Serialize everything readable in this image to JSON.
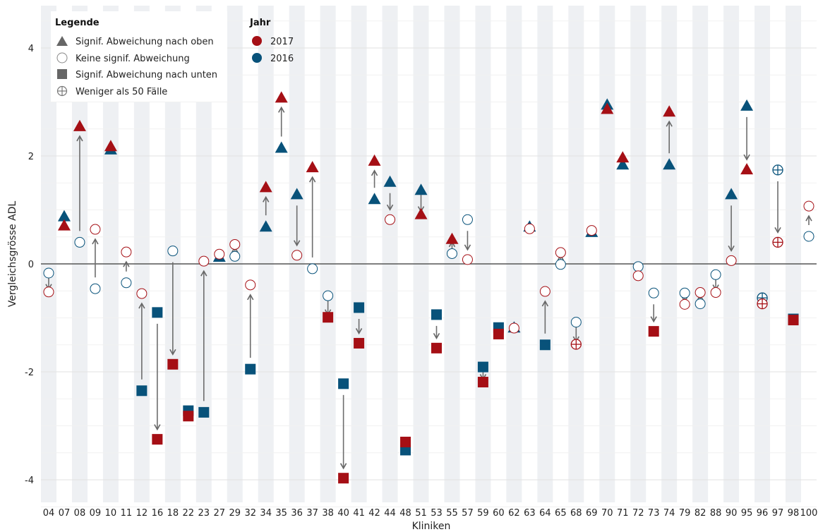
{
  "chart_data": {
    "type": "scatter",
    "xlabel": "Kliniken",
    "ylabel": "Vergleichsgrösse ADL",
    "ylim": [
      -4.6,
      4.6
    ],
    "yticks": [
      -4,
      -2,
      0,
      2,
      4
    ],
    "grid": true,
    "legend_position": "top-left",
    "legend": {
      "title": "Legende",
      "items": [
        {
          "label": "Signif. Abweichung nach oben",
          "symbol": "triangle"
        },
        {
          "label": "Keine signif. Abweichung",
          "symbol": "circle"
        },
        {
          "label": "Signif. Abweichung nach unten",
          "symbol": "square"
        },
        {
          "label": "Weniger als 50 Fälle",
          "symbol": "crossed-circle"
        }
      ]
    },
    "year_legend": {
      "title": "Jahr",
      "items": [
        {
          "label": "2017",
          "color": "#a50f15"
        },
        {
          "label": "2016",
          "color": "#08527a"
        }
      ]
    },
    "categories": [
      "04",
      "07",
      "08",
      "09",
      "10",
      "11",
      "12",
      "16",
      "18",
      "22",
      "23",
      "27",
      "29",
      "32",
      "34",
      "35",
      "36",
      "37",
      "38",
      "40",
      "41",
      "42",
      "44",
      "48",
      "51",
      "53",
      "55",
      "57",
      "59",
      "60",
      "62",
      "63",
      "64",
      "65",
      "68",
      "69",
      "70",
      "71",
      "72",
      "73",
      "74",
      "79",
      "82",
      "88",
      "90",
      "95",
      "96",
      "97",
      "98",
      "100"
    ],
    "series": [
      {
        "name": "2016",
        "color": "#08527a",
        "values": [
          -0.17,
          0.88,
          0.4,
          -0.46,
          2.12,
          -0.35,
          -2.35,
          -0.9,
          0.24,
          -2.72,
          -2.75,
          0.13,
          0.14,
          -1.95,
          0.69,
          2.15,
          1.29,
          -0.09,
          -0.59,
          -2.22,
          -0.81,
          1.2,
          1.52,
          -3.45,
          1.37,
          -0.94,
          0.19,
          0.82,
          -1.91,
          -1.18,
          -1.18,
          0.69,
          -1.5,
          -0.01,
          -1.08,
          0.59,
          2.95,
          1.84,
          -0.05,
          -0.54,
          1.84,
          -0.54,
          -0.74,
          -0.2,
          1.29,
          2.93,
          -0.63,
          1.74,
          -1.02,
          0.51
        ],
        "markers": [
          "circle",
          "triangle",
          "circle",
          "circle",
          "triangle",
          "circle",
          "square",
          "square",
          "circle",
          "square",
          "square",
          "triangle",
          "circle",
          "square",
          "triangle",
          "triangle",
          "triangle",
          "circle",
          "circle",
          "square",
          "square",
          "triangle",
          "triangle",
          "square",
          "triangle",
          "square",
          "circle",
          "circle",
          "square",
          "square",
          "triangle",
          "triangle",
          "square",
          "circle",
          "circle",
          "triangle",
          "triangle",
          "triangle",
          "circle",
          "circle",
          "triangle",
          "circle",
          "circle",
          "circle",
          "triangle",
          "triangle",
          "crossed-circle",
          "crossed-circle",
          "square",
          "circle"
        ]
      },
      {
        "name": "2017",
        "color": "#a50f15",
        "values": [
          -0.52,
          0.71,
          2.55,
          0.64,
          2.18,
          0.22,
          -0.55,
          -3.25,
          -1.86,
          -2.82,
          0.05,
          0.18,
          0.36,
          -0.39,
          1.42,
          3.08,
          0.16,
          1.79,
          -0.99,
          -3.97,
          -1.47,
          1.91,
          0.82,
          -3.3,
          0.92,
          -1.56,
          0.46,
          0.08,
          -2.19,
          -1.3,
          -1.19,
          0.65,
          -0.51,
          0.21,
          -1.49,
          0.62,
          2.87,
          1.97,
          -0.22,
          -1.25,
          2.82,
          -0.75,
          -0.53,
          -0.53,
          0.06,
          1.75,
          -0.74,
          0.4,
          -1.04,
          1.07
        ],
        "markers": [
          "circle",
          "triangle",
          "triangle",
          "circle",
          "triangle",
          "circle",
          "circle",
          "square",
          "square",
          "square",
          "circle",
          "circle",
          "circle",
          "circle",
          "triangle",
          "triangle",
          "circle",
          "triangle",
          "square",
          "square",
          "square",
          "triangle",
          "circle",
          "square",
          "triangle",
          "square",
          "triangle",
          "circle",
          "square",
          "square",
          "circle",
          "circle",
          "circle",
          "circle",
          "crossed-circle",
          "circle",
          "triangle",
          "triangle",
          "circle",
          "square",
          "triangle",
          "circle",
          "circle",
          "circle",
          "circle",
          "triangle",
          "crossed-circle",
          "crossed-circle",
          "square",
          "circle"
        ]
      }
    ]
  }
}
